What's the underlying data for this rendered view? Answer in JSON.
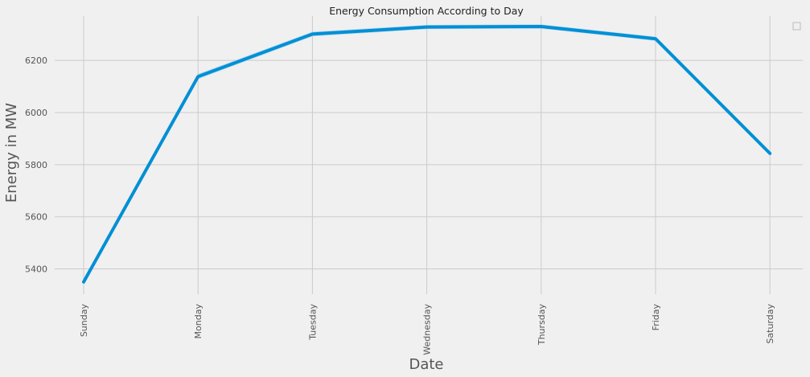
{
  "chart_data": {
    "type": "line",
    "title": "Energy Consumption According to Day",
    "xlabel": "Date",
    "ylabel": "Energy in MW",
    "categories": [
      "Sunday",
      "Monday",
      "Tuesday",
      "Wednesday",
      "Thursday",
      "Friday",
      "Saturday"
    ],
    "series": [
      {
        "values": [
          5350,
          6138,
          6301,
          6328,
          6330,
          6283,
          5843
        ]
      }
    ],
    "ci_lower": [
      5343,
      6128,
      6292,
      6320,
      6322,
      6275,
      5836
    ],
    "ci_upper": [
      5357,
      6148,
      6310,
      6336,
      6338,
      6291,
      5850
    ],
    "ylim": [
      5303,
      6370
    ],
    "yticks": [
      "5400",
      "5600",
      "5800",
      "6000",
      "6200"
    ],
    "grid": true,
    "legend": "top-right",
    "colors": {
      "line": "#008fd5",
      "band": "#9fd3ef",
      "background": "#f0f0f0",
      "grid": "#cbcbcb"
    }
  }
}
